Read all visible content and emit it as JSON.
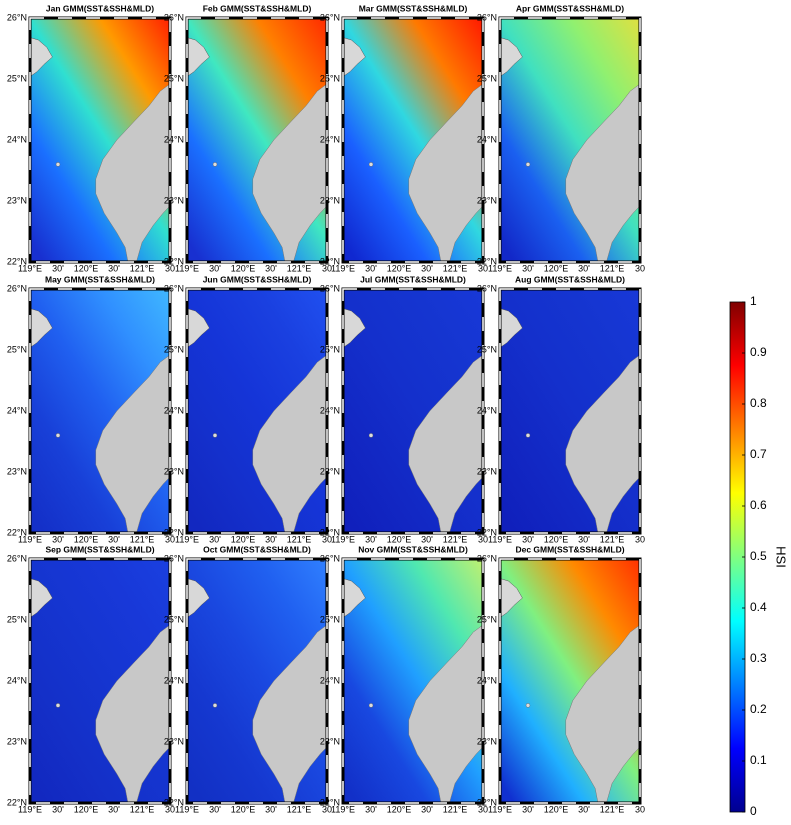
{
  "panels": [
    {
      "title": "Jan GMM(SST&SSH&MLD)"
    },
    {
      "title": "Feb GMM(SST&SSH&MLD)"
    },
    {
      "title": "Mar GMM(SST&SSH&MLD)"
    },
    {
      "title": "Apr GMM(SST&SSH&MLD)"
    },
    {
      "title": "May GMM(SST&SSH&MLD)"
    },
    {
      "title": "Jun GMM(SST&SSH&MLD)"
    },
    {
      "title": "Jul GMM(SST&SSH&MLD)"
    },
    {
      "title": "Aug GMM(SST&SSH&MLD)"
    },
    {
      "title": "Sep GMM(SST&SSH&MLD)"
    },
    {
      "title": "Oct GMM(SST&SSH&MLD)"
    },
    {
      "title": "Nov GMM(SST&SSH&MLD)"
    },
    {
      "title": "Dec GMM(SST&SSH&MLD)"
    }
  ],
  "lat_labels": [
    "26°N",
    "25°N",
    "24°N",
    "23°N",
    "22°N"
  ],
  "lon_labels": [
    "119°E",
    "30'",
    "120°E",
    "30'",
    "121°E",
    "30"
  ],
  "colorbar": {
    "label": "HSI",
    "lim": [
      0,
      1
    ],
    "ticks": [
      0,
      0.1,
      0.2,
      0.3,
      0.4,
      0.5,
      0.6,
      0.7,
      0.8,
      0.9,
      1
    ],
    "colors": [
      "#00008f",
      "#0000ff",
      "#0080ff",
      "#00ffff",
      "#80ff80",
      "#ffff00",
      "#ff8000",
      "#ff0000",
      "#800000"
    ]
  }
}
